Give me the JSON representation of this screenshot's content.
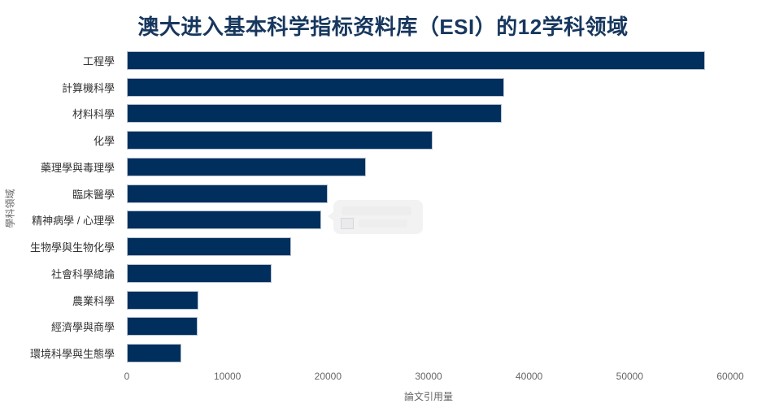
{
  "title": "澳大进入基本科学指标资料库（ESI）的12学科领域",
  "colors": {
    "title": "#17375e",
    "bar": "#012f5d",
    "bar_border": "#b7c3d1",
    "axis_text": "#666666",
    "category_text": "#333333",
    "tooltip_bg": "#f2f2f3"
  },
  "chart_data": {
    "type": "bar",
    "orientation": "horizontal",
    "title": "澳大进入基本科学指标资料库（ESI）的12学科领域",
    "categories": [
      "工程學",
      "計算機科學",
      "材料科學",
      "化學",
      "藥理學與毒理學",
      "臨床醫學",
      "精神病學 / 心理學",
      "生物學與生物化學",
      "社會科學總論",
      "農業科學",
      "經濟學與商學",
      "環境科學與生態學"
    ],
    "values": [
      57500,
      37500,
      37300,
      30400,
      23800,
      20000,
      19300,
      16300,
      14400,
      7100,
      7000,
      5400
    ],
    "xlabel": "論文引用量",
    "ylabel": "學科領域",
    "xlim": [
      0,
      60000
    ],
    "xticks": [
      0,
      10000,
      20000,
      30000,
      40000,
      50000,
      60000
    ],
    "grid": false,
    "legend": false,
    "background": "#ffffff"
  },
  "tooltip": {
    "visible": true,
    "state": "fading",
    "target_category": "精神病學 / 心理學",
    "text": ""
  }
}
